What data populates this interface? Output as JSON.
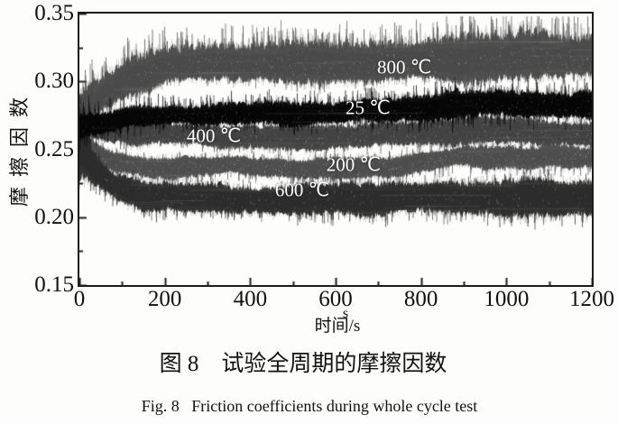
{
  "figure": {
    "y_axis_title": "摩擦因数",
    "x_axis_super": "s",
    "x_axis_title": "时间/s",
    "caption_cn": "图 8　试验全周期的摩擦因数",
    "caption_en": "Fig. 8   Friction coefficients during whole cycle test"
  },
  "chart_data": {
    "type": "line",
    "title": "",
    "xlabel": "时间/s",
    "ylabel": "摩擦因数",
    "xlim": [
      0,
      1200
    ],
    "ylim": [
      0.15,
      0.35
    ],
    "xticks": [
      0,
      200,
      400,
      600,
      800,
      1000,
      1200
    ],
    "xtick_minor_step": 100,
    "yticks": [
      0.15,
      0.2,
      0.25,
      0.3,
      0.35
    ],
    "ytick_labels": [
      "0.15",
      "0.20",
      "0.25",
      "0.30",
      "0.35"
    ],
    "ytick_minor_step": 0.025,
    "grid": false,
    "legend": "inline-labels",
    "series": [
      {
        "key": "s400",
        "name": "400 ℃",
        "color": "#434343",
        "label_pos": [
          315,
          0.2596
        ],
        "mean": [
          [
            0,
            0.272
          ],
          [
            60,
            0.2645
          ],
          [
            150,
            0.2605
          ],
          [
            300,
            0.26
          ],
          [
            450,
            0.259
          ],
          [
            600,
            0.2605
          ],
          [
            750,
            0.261
          ],
          [
            900,
            0.263
          ],
          [
            1050,
            0.263
          ],
          [
            1200,
            0.262
          ]
        ],
        "noise": 0.007,
        "noise_end": 0.009,
        "spike_up_p": 0.06,
        "spike_up": 0.007,
        "spike_dn_p": 0.06,
        "spike_dn": 0.007,
        "start_boost": 0.8,
        "decay": 30,
        "fleck_p": 0.3,
        "spike_boost0": 0.3,
        "edge_var": 0.75,
        "feather": 0.35
      },
      {
        "key": "s200",
        "name": "200 ℃",
        "color": "#4e4e4e",
        "label_pos": [
          642,
          0.2384
        ],
        "mean": [
          [
            0,
            0.255
          ],
          [
            60,
            0.242
          ],
          [
            150,
            0.2355
          ],
          [
            300,
            0.2368
          ],
          [
            450,
            0.2372
          ],
          [
            600,
            0.236
          ],
          [
            750,
            0.2385
          ],
          [
            900,
            0.2435
          ],
          [
            1050,
            0.2435
          ],
          [
            1200,
            0.2445
          ]
        ],
        "noise": 0.0062,
        "noise_end": 0.0072,
        "spike_up_p": 0.05,
        "spike_up": 0.006,
        "spike_dn_p": 0.08,
        "spike_dn": 0.008,
        "start_boost": 0.8,
        "decay": 30,
        "fleck_p": 0.3,
        "spike_boost0": 0.3,
        "edge_var": 0.75,
        "feather": 0.35
      },
      {
        "key": "s800",
        "name": "800 ℃",
        "color": "#4b4b4b",
        "label_pos": [
          761,
          0.31
        ],
        "mean": [
          [
            0,
            0.2795
          ],
          [
            40,
            0.288
          ],
          [
            120,
            0.3035
          ],
          [
            200,
            0.3105
          ],
          [
            350,
            0.3125
          ],
          [
            500,
            0.3125
          ],
          [
            650,
            0.314
          ],
          [
            800,
            0.315
          ],
          [
            950,
            0.3155
          ],
          [
            1100,
            0.317
          ],
          [
            1200,
            0.318
          ]
        ],
        "noise": 0.0105,
        "noise_end": 0.0145,
        "spike_up_p": 0.15,
        "spike_up": 0.017,
        "spike_dn_p": 0.05,
        "spike_dn": 0.006,
        "start_boost": 0.0,
        "decay": 35,
        "fleck_p": 0.34,
        "spike_boost0": 0.5,
        "edge_var": 1.1,
        "feather": 0.5
      },
      {
        "key": "s600",
        "name": "600 ℃",
        "color": "#2d2d2d",
        "label_pos": [
          522,
          0.2198
        ],
        "mean": [
          [
            0,
            0.252
          ],
          [
            30,
            0.235
          ],
          [
            80,
            0.222
          ],
          [
            150,
            0.2165
          ],
          [
            300,
            0.2145
          ],
          [
            500,
            0.2125
          ],
          [
            700,
            0.213
          ],
          [
            900,
            0.2148
          ],
          [
            1100,
            0.2148
          ],
          [
            1200,
            0.215
          ]
        ],
        "noise": 0.0085,
        "noise_end": 0.012,
        "spike_up_p": 0.05,
        "spike_up": 0.007,
        "spike_dn_p": 0.1,
        "spike_dn": 0.009,
        "start_boost": 2.2,
        "decay": 25,
        "fleck_p": 0.2,
        "spike_boost0": 0.8,
        "edge_var": 0.75,
        "feather": 0.35
      },
      {
        "key": "s25",
        "name": "25 ℃",
        "color": "#060606",
        "label_pos": [
          676,
          0.2802
        ],
        "mean": [
          [
            0,
            0.267
          ],
          [
            100,
            0.2715
          ],
          [
            250,
            0.2745
          ],
          [
            400,
            0.2765
          ],
          [
            550,
            0.2775
          ],
          [
            700,
            0.278
          ],
          [
            850,
            0.2805
          ],
          [
            1000,
            0.2835
          ],
          [
            1200,
            0.2825
          ]
        ],
        "noise": 0.006,
        "noise_end": 0.009,
        "spike_up_p": 0.13,
        "spike_up": 0.009,
        "spike_dn_p": 0.13,
        "spike_dn": 0.009,
        "start_boost": 0.3,
        "decay": 35,
        "fleck_p": 0.15,
        "spike_boost0": 1.2,
        "edge_var": 0.9,
        "feather": 0.35
      }
    ]
  }
}
